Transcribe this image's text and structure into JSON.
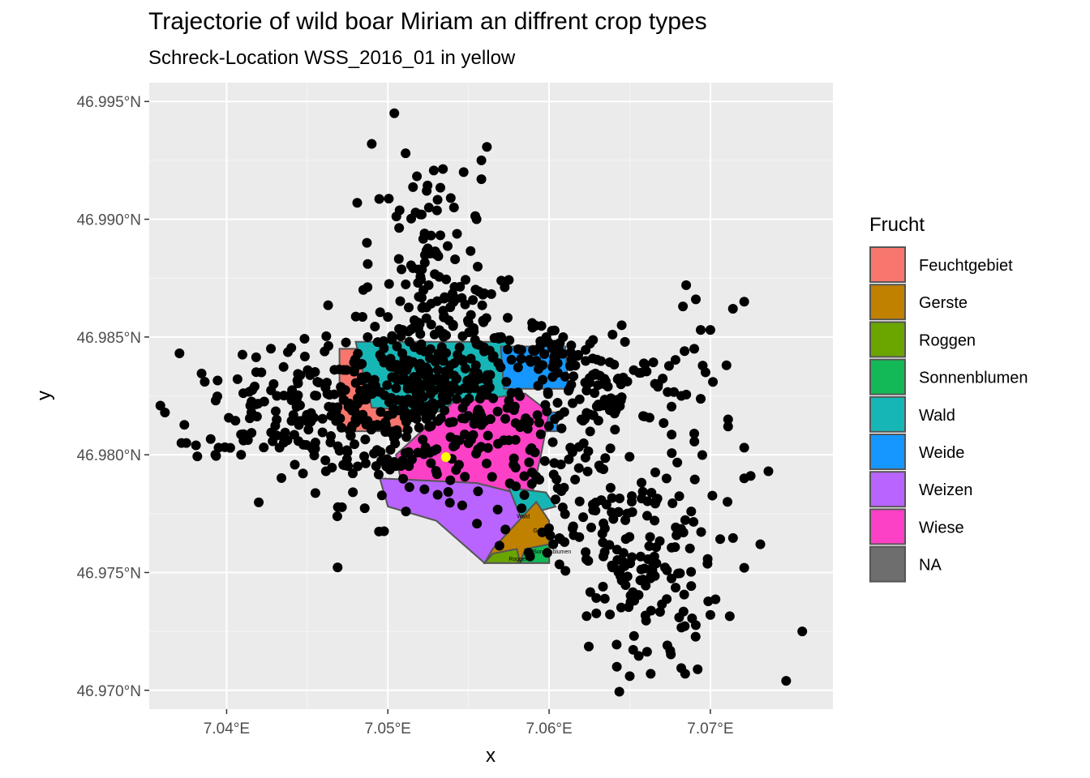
{
  "chart_data": {
    "type": "scatter",
    "title": "Trajectorie of wild boar Miriam an diffrent crop types",
    "subtitle": "Schreck-Location WSS_2016_01 in yellow",
    "xlabel": "x",
    "ylabel": "y",
    "xlim": [
      7.0352,
      7.0776
    ],
    "ylim": [
      46.9692,
      46.9958
    ],
    "x_ticks": [
      7.04,
      7.05,
      7.06,
      7.07
    ],
    "x_tick_labels": [
      "7.04°E",
      "7.05°E",
      "7.06°E",
      "7.07°E"
    ],
    "y_ticks": [
      46.97,
      46.975,
      46.98,
      46.985,
      46.99,
      46.995
    ],
    "y_tick_labels": [
      "46.970°N",
      "46.975°N",
      "46.980°N",
      "46.985°N",
      "46.990°N",
      "46.995°N"
    ],
    "grid": true,
    "legend": {
      "title": "Frucht",
      "position": "right",
      "entries": [
        {
          "label": "Feuchtgebiet",
          "color": "#F8766D"
        },
        {
          "label": "Gerste",
          "color": "#C08000"
        },
        {
          "label": "Roggen",
          "color": "#6BA500"
        },
        {
          "label": "Sonnenblumen",
          "color": "#13B956"
        },
        {
          "label": "Wald",
          "color": "#17B6B6"
        },
        {
          "label": "Weide",
          "color": "#1597FF"
        },
        {
          "label": "Weizen",
          "color": "#B964FF"
        },
        {
          "label": "Wiese",
          "color": "#FD41C6"
        },
        {
          "label": "NA",
          "color": "#6E6E6E"
        }
      ]
    },
    "field_labels": [
      "Wald",
      "Gerste",
      "Sonnenblumen",
      "Roggen"
    ],
    "polygons": [
      {
        "crop": "Feuchtgebiet",
        "points": [
          [
            7.047,
            46.9845
          ],
          [
            7.051,
            46.9845
          ],
          [
            7.051,
            46.981
          ],
          [
            7.047,
            46.981
          ]
        ]
      },
      {
        "crop": "Wald",
        "points": [
          [
            7.048,
            46.9848
          ],
          [
            7.0575,
            46.9848
          ],
          [
            7.058,
            46.9822
          ],
          [
            7.054,
            46.9818
          ],
          [
            7.049,
            46.982
          ]
        ]
      },
      {
        "crop": "Weide",
        "points": [
          [
            7.057,
            46.9846
          ],
          [
            7.061,
            46.9846
          ],
          [
            7.0612,
            46.9828
          ],
          [
            7.0572,
            46.9828
          ]
        ]
      },
      {
        "crop": "Weide",
        "points": [
          [
            7.059,
            46.9818
          ],
          [
            7.0605,
            46.9818
          ],
          [
            7.0605,
            46.981
          ],
          [
            7.059,
            46.981
          ]
        ]
      },
      {
        "crop": "Wiese",
        "points": [
          [
            7.054,
            46.9822
          ],
          [
            7.0585,
            46.9826
          ],
          [
            7.06,
            46.9818
          ],
          [
            7.0595,
            46.98
          ],
          [
            7.059,
            46.9785
          ],
          [
            7.0545,
            46.978
          ],
          [
            7.051,
            46.9782
          ],
          [
            7.0505,
            46.98
          ]
        ]
      },
      {
        "crop": "Weizen",
        "points": [
          [
            7.0495,
            46.979
          ],
          [
            7.0555,
            46.9788
          ],
          [
            7.059,
            46.9782
          ],
          [
            7.058,
            46.976
          ],
          [
            7.056,
            46.9754
          ],
          [
            7.053,
            46.9772
          ],
          [
            7.05,
            46.9778
          ]
        ]
      },
      {
        "crop": "Wald",
        "points": [
          [
            7.0575,
            46.9786
          ],
          [
            7.0598,
            46.9784
          ],
          [
            7.0604,
            46.9778
          ],
          [
            7.0582,
            46.9774
          ]
        ]
      },
      {
        "crop": "Gerste",
        "points": [
          [
            7.056,
            46.9754
          ],
          [
            7.06,
            46.9754
          ],
          [
            7.06,
            46.9772
          ],
          [
            7.0592,
            46.978
          ],
          [
            7.0565,
            46.976
          ]
        ]
      },
      {
        "crop": "Sonnenblumen",
        "points": [
          [
            7.0582,
            46.9754
          ],
          [
            7.06,
            46.9754
          ],
          [
            7.06,
            46.9762
          ],
          [
            7.0585,
            46.976
          ]
        ]
      },
      {
        "crop": "Roggen",
        "points": [
          [
            7.056,
            46.9754
          ],
          [
            7.0582,
            46.9754
          ],
          [
            7.058,
            46.976
          ],
          [
            7.0565,
            46.9758
          ]
        ]
      }
    ],
    "scatter_clusters": [
      {
        "cx": 7.051,
        "cy": 46.982,
        "sx": 0.004,
        "sy": 0.002,
        "n": 320
      },
      {
        "cx": 7.0535,
        "cy": 46.984,
        "sx": 0.0025,
        "sy": 0.0022,
        "n": 140
      },
      {
        "cx": 7.044,
        "cy": 46.982,
        "sx": 0.0035,
        "sy": 0.001,
        "n": 110
      },
      {
        "cx": 7.0525,
        "cy": 46.988,
        "sx": 0.0018,
        "sy": 0.0025,
        "n": 60
      },
      {
        "cx": 7.063,
        "cy": 46.983,
        "sx": 0.003,
        "sy": 0.001,
        "n": 110
      },
      {
        "cx": 7.0655,
        "cy": 46.9755,
        "sx": 0.0025,
        "sy": 0.0025,
        "n": 170
      },
      {
        "cx": 7.06,
        "cy": 46.979,
        "sx": 0.002,
        "sy": 0.0015,
        "n": 60
      },
      {
        "cx": 7.06,
        "cy": 46.9845,
        "sx": 0.0015,
        "sy": 0.0005,
        "n": 40
      }
    ],
    "scatter_points": [
      [
        7.0504,
        46.9945
      ],
      [
        7.049,
        46.9932
      ],
      [
        7.0511,
        46.9928
      ],
      [
        7.0558,
        46.9925
      ],
      [
        7.0547,
        46.992
      ],
      [
        7.0558,
        46.9917
      ],
      [
        7.0481,
        46.9907
      ],
      [
        7.0521,
        46.9902
      ],
      [
        7.0541,
        46.9905
      ],
      [
        7.0539,
        46.9909
      ],
      [
        7.0555,
        46.99
      ],
      [
        7.0487,
        46.989
      ],
      [
        7.0685,
        46.9872
      ],
      [
        7.0691,
        46.9866
      ],
      [
        7.0714,
        46.9862
      ],
      [
        7.0721,
        46.9865
      ],
      [
        7.0683,
        46.9863
      ],
      [
        7.0645,
        46.9855
      ],
      [
        7.0694,
        46.9853
      ],
      [
        7.07,
        46.9853
      ],
      [
        7.0684,
        46.9844
      ],
      [
        7.069,
        46.9845
      ],
      [
        7.071,
        46.9838
      ],
      [
        7.0697,
        46.9835
      ],
      [
        7.0682,
        46.9825
      ],
      [
        7.0711,
        46.9815
      ],
      [
        7.0711,
        46.9812
      ],
      [
        7.069,
        46.9809
      ],
      [
        7.0721,
        46.9803
      ],
      [
        7.0736,
        46.9793
      ],
      [
        7.0725,
        46.9791
      ],
      [
        7.0721,
        46.979
      ],
      [
        7.0731,
        46.9762
      ],
      [
        7.0721,
        46.9752
      ],
      [
        7.07,
        46.9732
      ],
      [
        7.0757,
        46.9725
      ],
      [
        7.0747,
        46.9704
      ],
      [
        7.0642,
        46.971
      ],
      [
        7.065,
        46.9706
      ],
      [
        7.0663,
        46.9707
      ],
      [
        7.0375,
        46.9805
      ],
      [
        7.0381,
        46.9804
      ],
      [
        7.0372,
        46.9805
      ],
      [
        7.0395,
        46.9803
      ],
      [
        7.0393,
        46.98
      ],
      [
        7.0409,
        46.98
      ]
    ],
    "highlight_point": {
      "x": 7.0536,
      "y": 46.9799,
      "color": "#FFFF00"
    }
  }
}
